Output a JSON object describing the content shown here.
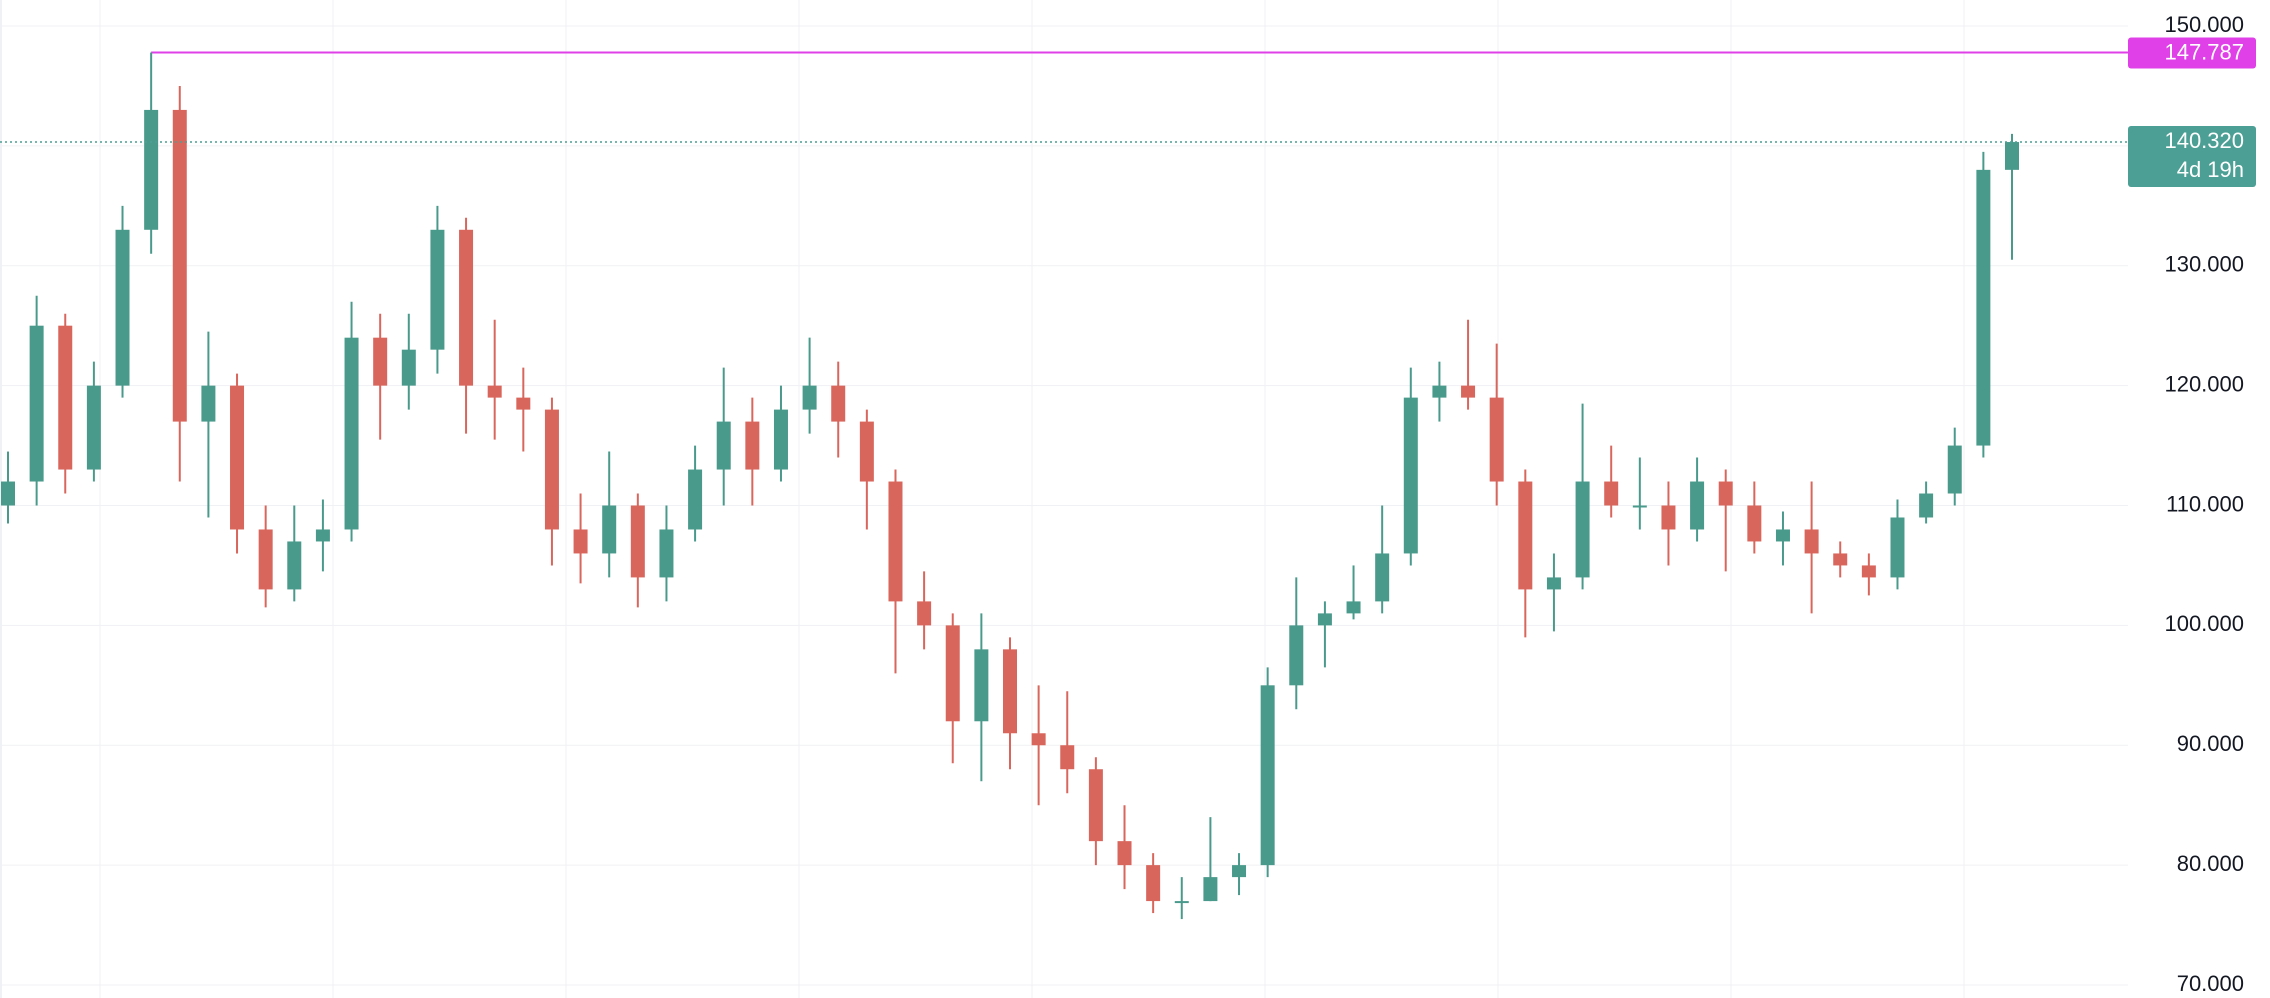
{
  "chart_data": {
    "type": "candlestick",
    "up_color": "#4a9a8c",
    "down_color": "#d9665c",
    "grid": true,
    "ylim": [
      70000,
      150000
    ],
    "yticks": [
      {
        "value": 70000,
        "label": "70.000"
      },
      {
        "value": 80000,
        "label": "80.000"
      },
      {
        "value": 90000,
        "label": "90.000"
      },
      {
        "value": 100000,
        "label": "100.000"
      },
      {
        "value": 110000,
        "label": "110.000"
      },
      {
        "value": 120000,
        "label": "120.000"
      },
      {
        "value": 130000,
        "label": "130.000"
      },
      {
        "value": 140000,
        "label": "140.000"
      },
      {
        "value": 150000,
        "label": "150.000"
      }
    ],
    "open": [
      110000,
      112000,
      125000,
      113000,
      120000,
      133000,
      143000,
      117000,
      120000,
      108000,
      103000,
      107000,
      108000,
      124000,
      120000,
      123000,
      133000,
      120000,
      119000,
      118000,
      108000,
      106000,
      110000,
      104000,
      108000,
      113000,
      117000,
      113000,
      118000,
      120000,
      117000,
      112000,
      102000,
      100000,
      92000,
      98000,
      91000,
      90000,
      88000,
      82000,
      80000,
      77000,
      77000,
      79000,
      80000,
      95000,
      100000,
      101000,
      102000,
      106000,
      119000,
      120000,
      119000,
      112000,
      103000,
      104000,
      112000,
      110000,
      110000,
      108000,
      112000,
      110000,
      107000,
      108000,
      106000,
      105000,
      104000,
      109000,
      111000,
      115000,
      138000
    ],
    "high": [
      114500,
      127500,
      126000,
      122000,
      135000,
      147787,
      145000,
      124500,
      121000,
      110000,
      110000,
      110500,
      127000,
      126000,
      126000,
      135000,
      134000,
      125500,
      121500,
      119000,
      111000,
      114500,
      111000,
      110000,
      115000,
      121500,
      119000,
      120000,
      124000,
      122000,
      118000,
      113000,
      104500,
      101000,
      101000,
      99000,
      95000,
      94500,
      89000,
      85000,
      81000,
      79000,
      84000,
      81000,
      96500,
      104000,
      102000,
      105000,
      110000,
      121500,
      122000,
      125500,
      123500,
      113000,
      106000,
      118500,
      115000,
      114000,
      112000,
      114000,
      113000,
      112000,
      109500,
      112000,
      107000,
      106000,
      110500,
      112000,
      116500,
      139500,
      141000
    ],
    "low": [
      108500,
      110000,
      111000,
      112000,
      119000,
      131000,
      112000,
      109000,
      106000,
      101500,
      102000,
      104500,
      107000,
      115500,
      118000,
      121000,
      116000,
      115500,
      114500,
      105000,
      103500,
      104000,
      101500,
      102000,
      107000,
      110000,
      110000,
      112000,
      116000,
      114000,
      108000,
      96000,
      98000,
      88500,
      87000,
      88000,
      85000,
      86000,
      80000,
      78000,
      76000,
      75500,
      77000,
      77500,
      79000,
      93000,
      96500,
      100500,
      101000,
      105000,
      117000,
      118000,
      110000,
      99000,
      99500,
      103000,
      109000,
      108000,
      105000,
      107000,
      104500,
      106000,
      105000,
      101000,
      104000,
      102500,
      103000,
      108500,
      110000,
      114000,
      130500
    ],
    "close": [
      112000,
      125000,
      113000,
      120000,
      133000,
      143000,
      117000,
      120000,
      108000,
      103000,
      107000,
      108000,
      124000,
      120000,
      123000,
      133000,
      120000,
      119000,
      118000,
      108000,
      106000,
      110000,
      104000,
      108000,
      113000,
      117000,
      113000,
      118000,
      120000,
      117000,
      112000,
      102000,
      100000,
      92000,
      98000,
      91000,
      90000,
      88000,
      82000,
      80000,
      77000,
      77000,
      79000,
      80000,
      95000,
      100000,
      101000,
      102000,
      106000,
      119000,
      120000,
      119000,
      112000,
      103000,
      104000,
      112000,
      110000,
      110000,
      108000,
      112000,
      110000,
      107000,
      108000,
      106000,
      105000,
      104000,
      109000,
      111000,
      115000,
      138000,
      140320
    ],
    "max_line": {
      "value": 147787,
      "label": "147.787",
      "color": "#e040e8"
    },
    "last_price": {
      "value": 140320,
      "label": "140.320",
      "countdown": "4d 19h",
      "color": "#4c9f94"
    }
  }
}
